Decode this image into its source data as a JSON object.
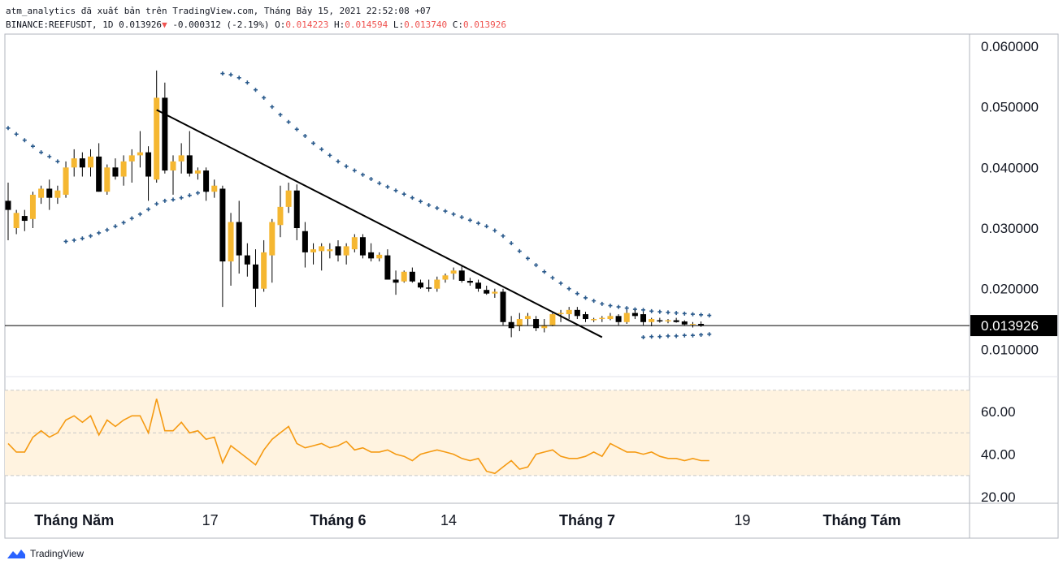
{
  "header": {
    "line1": "atm_analytics đã xuất bản trên TradingView.com, Tháng Bảy 15, 2021 22:52:08 +07",
    "symbol": "BINANCE:REEFUSDT, 1D",
    "last": "0.013926",
    "down_arrow": "▼",
    "change": "-0.000312 (-2.19%)",
    "o_label": "O:",
    "o_value": "0.014223",
    "h_label": "H:",
    "h_value": "0.014594",
    "l_label": "L:",
    "l_value": "0.013740",
    "c_label": "C:",
    "c_value": "0.013926"
  },
  "colors": {
    "up": "#f5b731",
    "down": "#000000",
    "sar": "#2a5a8c",
    "rsi": "#f59a12",
    "rsi_band": "#fff3e0",
    "trendline": "#000000"
  },
  "chart_data": [
    {
      "type": "candlestick",
      "title": "BINANCE:REEFUSDT, 1D",
      "ylim": [
        0.0055,
        0.062
      ],
      "price_axis_ticks": [
        "0.060000",
        "0.050000",
        "0.040000",
        "0.030000",
        "0.020000",
        "0.010000"
      ],
      "last_price_label": "0.013926",
      "last_price": 0.013926,
      "x_tick_labels": [
        "Tháng Năm",
        "17",
        "Tháng 6",
        "14",
        "Tháng 7",
        "19",
        "Tháng Tám"
      ],
      "candles_ohlc": [
        [
          0.0345,
          0.0375,
          0.028,
          0.033
        ],
        [
          0.03,
          0.033,
          0.029,
          0.0325
        ],
        [
          0.032,
          0.033,
          0.0295,
          0.0312
        ],
        [
          0.0315,
          0.036,
          0.03,
          0.0355
        ],
        [
          0.035,
          0.037,
          0.034,
          0.0365
        ],
        [
          0.0365,
          0.038,
          0.033,
          0.035
        ],
        [
          0.035,
          0.037,
          0.034,
          0.0362
        ],
        [
          0.0355,
          0.041,
          0.035,
          0.04
        ],
        [
          0.04,
          0.043,
          0.0385,
          0.0415
        ],
        [
          0.0415,
          0.0425,
          0.0385,
          0.04
        ],
        [
          0.04,
          0.043,
          0.0385,
          0.0418
        ],
        [
          0.0418,
          0.044,
          0.036,
          0.036
        ],
        [
          0.036,
          0.0405,
          0.0355,
          0.04
        ],
        [
          0.04,
          0.0415,
          0.038,
          0.0385
        ],
        [
          0.0385,
          0.042,
          0.037,
          0.041
        ],
        [
          0.041,
          0.043,
          0.0375,
          0.042
        ],
        [
          0.042,
          0.046,
          0.04,
          0.0425
        ],
        [
          0.0425,
          0.0435,
          0.0345,
          0.0385
        ],
        [
          0.038,
          0.056,
          0.0375,
          0.0515
        ],
        [
          0.0515,
          0.054,
          0.039,
          0.0395
        ],
        [
          0.0395,
          0.042,
          0.0355,
          0.041
        ],
        [
          0.041,
          0.044,
          0.039,
          0.042
        ],
        [
          0.042,
          0.046,
          0.0385,
          0.039
        ],
        [
          0.039,
          0.04,
          0.038,
          0.0395
        ],
        [
          0.0395,
          0.04,
          0.0345,
          0.036
        ],
        [
          0.036,
          0.038,
          0.035,
          0.037
        ],
        [
          0.0365,
          0.037,
          0.017,
          0.0245
        ],
        [
          0.0245,
          0.0325,
          0.0205,
          0.031
        ],
        [
          0.031,
          0.0345,
          0.0225,
          0.0255
        ],
        [
          0.0255,
          0.0275,
          0.022,
          0.024
        ],
        [
          0.024,
          0.0265,
          0.017,
          0.02
        ],
        [
          0.02,
          0.028,
          0.0195,
          0.026
        ],
        [
          0.0255,
          0.0315,
          0.021,
          0.031
        ],
        [
          0.0305,
          0.037,
          0.0285,
          0.0335
        ],
        [
          0.0335,
          0.0375,
          0.0325,
          0.0362
        ],
        [
          0.0362,
          0.0372,
          0.028,
          0.03
        ],
        [
          0.0295,
          0.031,
          0.0235,
          0.026
        ],
        [
          0.026,
          0.0275,
          0.024,
          0.0265
        ],
        [
          0.0262,
          0.0275,
          0.023,
          0.027
        ],
        [
          0.0262,
          0.0275,
          0.025,
          0.0265
        ],
        [
          0.027,
          0.028,
          0.0245,
          0.0255
        ],
        [
          0.0255,
          0.0275,
          0.024,
          0.027
        ],
        [
          0.0265,
          0.029,
          0.026,
          0.0285
        ],
        [
          0.0285,
          0.029,
          0.025,
          0.0255
        ],
        [
          0.026,
          0.0275,
          0.0245,
          0.025
        ],
        [
          0.025,
          0.026,
          0.0245,
          0.0256
        ],
        [
          0.0255,
          0.0265,
          0.0215,
          0.0215
        ],
        [
          0.0215,
          0.023,
          0.019,
          0.021
        ],
        [
          0.0212,
          0.023,
          0.021,
          0.0228
        ],
        [
          0.0228,
          0.0235,
          0.021,
          0.0212
        ],
        [
          0.021,
          0.0215,
          0.02,
          0.0202
        ],
        [
          0.0202,
          0.0215,
          0.0195,
          0.02
        ],
        [
          0.02,
          0.022,
          0.0195,
          0.0215
        ],
        [
          0.0215,
          0.0225,
          0.021,
          0.0222
        ],
        [
          0.0225,
          0.0235,
          0.0215,
          0.023
        ],
        [
          0.023,
          0.0238,
          0.021,
          0.0213
        ],
        [
          0.0213,
          0.0218,
          0.0205,
          0.021
        ],
        [
          0.021,
          0.0215,
          0.0195,
          0.02
        ],
        [
          0.0198,
          0.0205,
          0.019,
          0.0192
        ],
        [
          0.0192,
          0.02,
          0.0185,
          0.0195
        ],
        [
          0.0195,
          0.02,
          0.014,
          0.0145
        ],
        [
          0.0145,
          0.0155,
          0.012,
          0.0135
        ],
        [
          0.0138,
          0.016,
          0.013,
          0.015
        ],
        [
          0.015,
          0.016,
          0.014,
          0.0155
        ],
        [
          0.015,
          0.0155,
          0.013,
          0.0135
        ],
        [
          0.0135,
          0.015,
          0.0128,
          0.014
        ],
        [
          0.014,
          0.016,
          0.0138,
          0.0158
        ],
        [
          0.0158,
          0.0165,
          0.0145,
          0.016
        ],
        [
          0.0158,
          0.017,
          0.015,
          0.0165
        ],
        [
          0.0165,
          0.017,
          0.015,
          0.0155
        ],
        [
          0.0158,
          0.0162,
          0.0145,
          0.015
        ],
        [
          0.0148,
          0.0152,
          0.0145,
          0.015
        ],
        [
          0.015,
          0.0155,
          0.0145,
          0.0152
        ],
        [
          0.015,
          0.016,
          0.0148,
          0.0155
        ],
        [
          0.0155,
          0.0158,
          0.014,
          0.0145
        ],
        [
          0.0145,
          0.0165,
          0.0142,
          0.016
        ],
        [
          0.016,
          0.0165,
          0.015,
          0.0155
        ],
        [
          0.0158,
          0.0162,
          0.014,
          0.0145
        ],
        [
          0.0145,
          0.0152,
          0.0138,
          0.015
        ],
        [
          0.0148,
          0.0152,
          0.0144,
          0.0146
        ],
        [
          0.0146,
          0.015,
          0.0143,
          0.0148
        ],
        [
          0.0148,
          0.0152,
          0.0144,
          0.0145
        ],
        [
          0.0146,
          0.0148,
          0.014,
          0.0141
        ],
        [
          0.0141,
          0.0145,
          0.0136,
          0.0142
        ],
        [
          0.0142,
          0.0146,
          0.0137,
          0.0139
        ]
      ],
      "sar_upper": [
        [
          0,
          0.0465
        ],
        [
          1,
          0.0455
        ],
        [
          2,
          0.0445
        ],
        [
          3,
          0.0435
        ],
        [
          4,
          0.0425
        ],
        [
          5,
          0.0418
        ],
        [
          6,
          0.041
        ],
        [
          26,
          0.0555
        ],
        [
          27,
          0.0553
        ],
        [
          28,
          0.0548
        ],
        [
          29,
          0.054
        ],
        [
          30,
          0.0528
        ],
        [
          31,
          0.0515
        ],
        [
          32,
          0.05
        ],
        [
          33,
          0.0487
        ],
        [
          34,
          0.0475
        ],
        [
          35,
          0.0463
        ],
        [
          36,
          0.0452
        ],
        [
          37,
          0.044
        ],
        [
          38,
          0.043
        ],
        [
          39,
          0.042
        ],
        [
          40,
          0.041
        ],
        [
          41,
          0.0402
        ],
        [
          42,
          0.0395
        ],
        [
          43,
          0.0388
        ],
        [
          44,
          0.0381
        ],
        [
          45,
          0.0374
        ],
        [
          46,
          0.0368
        ],
        [
          47,
          0.0362
        ],
        [
          48,
          0.0356
        ],
        [
          49,
          0.035
        ],
        [
          50,
          0.0344
        ],
        [
          51,
          0.0338
        ],
        [
          52,
          0.0333
        ],
        [
          53,
          0.0328
        ],
        [
          54,
          0.0323
        ],
        [
          55,
          0.0318
        ],
        [
          56,
          0.0313
        ],
        [
          57,
          0.0308
        ],
        [
          58,
          0.0303
        ],
        [
          59,
          0.0296
        ],
        [
          60,
          0.0287
        ],
        [
          61,
          0.0275
        ],
        [
          62,
          0.0262
        ],
        [
          63,
          0.025
        ],
        [
          64,
          0.0239
        ],
        [
          65,
          0.0228
        ],
        [
          66,
          0.0218
        ],
        [
          67,
          0.0209
        ],
        [
          68,
          0.02
        ],
        [
          69,
          0.0192
        ],
        [
          70,
          0.0185
        ],
        [
          71,
          0.018
        ],
        [
          72,
          0.0175
        ],
        [
          73,
          0.0172
        ],
        [
          74,
          0.017
        ],
        [
          75,
          0.0168
        ],
        [
          76,
          0.0166
        ],
        [
          77,
          0.0165
        ],
        [
          78,
          0.0163
        ],
        [
          79,
          0.0162
        ],
        [
          80,
          0.0161
        ],
        [
          81,
          0.016
        ],
        [
          82,
          0.0159
        ],
        [
          83,
          0.0158
        ],
        [
          84,
          0.0157
        ],
        [
          85,
          0.0156
        ]
      ],
      "sar_lower": [
        [
          7,
          0.0278
        ],
        [
          8,
          0.028
        ],
        [
          9,
          0.0283
        ],
        [
          10,
          0.0287
        ],
        [
          11,
          0.0292
        ],
        [
          12,
          0.0297
        ],
        [
          13,
          0.0303
        ],
        [
          14,
          0.0309
        ],
        [
          15,
          0.0316
        ],
        [
          16,
          0.0323
        ],
        [
          17,
          0.0331
        ],
        [
          18,
          0.034
        ],
        [
          19,
          0.0345
        ],
        [
          20,
          0.0347
        ],
        [
          21,
          0.035
        ],
        [
          22,
          0.0354
        ],
        [
          23,
          0.0358
        ],
        [
          24,
          0.0362
        ],
        [
          25,
          0.0367
        ],
        [
          77,
          0.012
        ],
        [
          78,
          0.0121
        ],
        [
          79,
          0.0121
        ],
        [
          80,
          0.0122
        ],
        [
          81,
          0.0122
        ],
        [
          82,
          0.0123
        ],
        [
          83,
          0.0123
        ],
        [
          84,
          0.0124
        ],
        [
          85,
          0.0125
        ]
      ],
      "trendline": [
        [
          18,
          0.0495
        ],
        [
          72,
          0.012
        ]
      ]
    },
    {
      "type": "line",
      "ylim": [
        17,
        76
      ],
      "y_ticks": [
        "60.00",
        "40.00",
        "20.00"
      ],
      "band": [
        30,
        70
      ],
      "midline": 50,
      "x": [
        0,
        1,
        2,
        3,
        4,
        5,
        6,
        7,
        8,
        9,
        10,
        11,
        12,
        13,
        14,
        15,
        16,
        17,
        18,
        19,
        20,
        21,
        22,
        23,
        24,
        25,
        26,
        27,
        28,
        29,
        30,
        31,
        32,
        33,
        34,
        35,
        36,
        37,
        38,
        39,
        40,
        41,
        42,
        43,
        44,
        45,
        46,
        47,
        48,
        49,
        50,
        51,
        52,
        53,
        54,
        55,
        56,
        57,
        58,
        59,
        60,
        61,
        62,
        63,
        64,
        65,
        66,
        67,
        68,
        69,
        70,
        71,
        72,
        73,
        74,
        75,
        76,
        77,
        78,
        79,
        80,
        81,
        82,
        83,
        84,
        85
      ],
      "values": [
        45,
        41,
        41,
        48,
        51,
        48,
        50,
        56,
        58,
        55,
        58,
        49,
        56,
        53,
        56,
        58,
        58,
        50,
        66,
        51,
        51,
        55,
        50,
        51,
        47,
        48,
        36,
        44,
        41,
        38,
        35,
        42,
        47,
        50,
        53,
        45,
        43,
        44,
        45,
        43,
        44,
        46,
        42,
        43,
        41,
        41,
        42,
        40,
        39,
        37,
        40,
        41,
        42,
        41,
        40,
        38,
        37,
        38,
        32,
        31,
        34,
        37,
        33,
        34,
        40,
        41,
        42,
        39,
        38,
        38,
        39,
        41,
        39,
        45,
        43,
        41,
        41,
        40,
        41,
        39,
        38,
        38,
        37,
        38,
        37,
        37
      ]
    }
  ],
  "footer": {
    "brand": "TradingView"
  }
}
